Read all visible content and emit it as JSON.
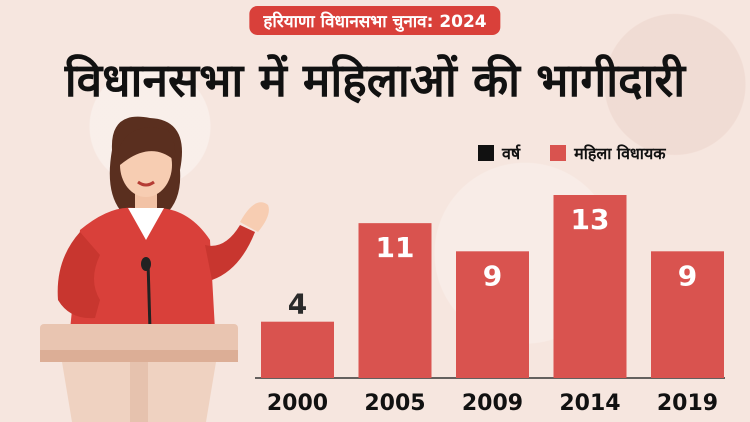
{
  "banner": "हरियाणा विधानसभा चुनाव: 2024",
  "headline": "विधानसभा में महिलाओं की भागीदारी",
  "legend": [
    {
      "label": "वर्ष",
      "color": "#111111"
    },
    {
      "label": "महिला विधायक",
      "color": "#d9534f"
    }
  ],
  "chart_data": {
    "type": "bar",
    "categories": [
      "2000",
      "2005",
      "2009",
      "2014",
      "2019"
    ],
    "series": [
      {
        "name": "महिला विधायक",
        "values": [
          4,
          11,
          9,
          13,
          9
        ]
      }
    ],
    "ylim": [
      0,
      13
    ],
    "bar_color": "#d9534f",
    "grid": false,
    "legend_placement": "top-right"
  }
}
